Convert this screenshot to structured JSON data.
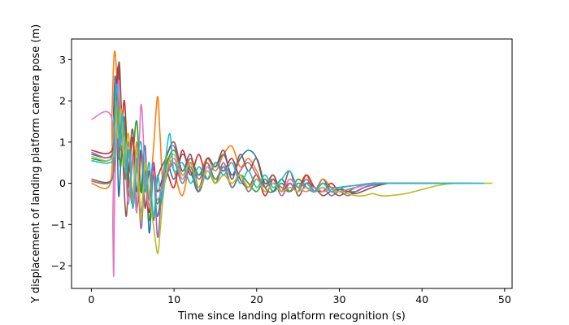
{
  "chart_data": {
    "type": "line",
    "title": "",
    "xlabel": "Time since landing platform recognition (s)",
    "ylabel": "Y displacement of landing platform camera pose (m)",
    "xlim": [
      -2.4,
      50.9
    ],
    "ylim": [
      -2.55,
      3.5
    ],
    "xticks": [
      0,
      10,
      20,
      30,
      40,
      50
    ],
    "yticks": [
      -2,
      -1,
      0,
      1,
      2,
      3
    ],
    "grid": false,
    "legend": "none",
    "series": [
      {
        "color": "#1f77b4",
        "x": [
          0,
          2.6,
          2.7,
          2.9,
          3.1,
          3.3,
          3.6,
          4.0,
          4.5,
          5.0,
          5.5,
          6.0,
          6.5,
          7.0,
          7.5,
          8.0,
          9.0,
          10.0,
          11.0,
          12.0,
          13.0,
          14.0,
          15.0,
          16.0,
          17.0,
          18.0,
          19.0,
          20.0,
          21.0,
          22.0,
          23.0,
          24.0,
          25.0,
          26.0,
          27.0,
          28.0,
          29.0,
          30.0,
          31.0,
          32.0,
          33.0,
          34.0,
          36.0,
          38.0,
          40.0,
          42.0,
          44.0,
          46.0
        ],
        "y": [
          0.7,
          0.7,
          1.8,
          2.6,
          1.5,
          -0.3,
          0.6,
          1.4,
          0.2,
          -0.5,
          0.6,
          -0.2,
          0.9,
          -1.2,
          0.3,
          -0.8,
          0.5,
          0.1,
          0.7,
          0.3,
          -0.2,
          0.6,
          0.4,
          0.7,
          0.2,
          0.6,
          0.8,
          0.6,
          -0.1,
          -0.2,
          0.1,
          -0.2,
          0.0,
          -0.1,
          -0.2,
          0.1,
          -0.2,
          -0.15,
          -0.2,
          -0.2,
          -0.1,
          -0.05,
          0.0,
          0.0,
          0.0,
          0.0,
          0.0,
          0.0
        ]
      },
      {
        "color": "#ff7f0e",
        "x": [
          0,
          2.3,
          2.5,
          2.8,
          3.2,
          3.6,
          4.0,
          4.5,
          5.0,
          5.5,
          6.0,
          6.5,
          7.0,
          7.5,
          8.0,
          8.3,
          8.7,
          9.2,
          10.0,
          11.0,
          12.0,
          13.0,
          14.0,
          15.0,
          16.0,
          17.0,
          18.0,
          19.0,
          20.0,
          21.0,
          22.0,
          23.0,
          24.0,
          25.0,
          26.0,
          27.0,
          28.0,
          29.0,
          30.0,
          32.0,
          34.0,
          36.0,
          38.0,
          40.0,
          42.0
        ],
        "y": [
          0.0,
          0.0,
          1.7,
          3.2,
          2.2,
          0.8,
          1.6,
          0.2,
          -0.4,
          1.0,
          -0.9,
          0.5,
          -0.3,
          0.8,
          2.1,
          1.2,
          -0.1,
          0.6,
          0.3,
          -0.3,
          0.5,
          0.2,
          0.6,
          0.3,
          0.7,
          0.9,
          0.4,
          0.6,
          0.3,
          -0.1,
          0.2,
          -0.2,
          0.1,
          -0.1,
          0.2,
          -0.2,
          0.1,
          -0.1,
          -0.2,
          -0.1,
          0.0,
          0.0,
          0.0,
          0.0,
          0.0
        ]
      },
      {
        "color": "#2ca02c",
        "x": [
          0,
          2.4,
          2.7,
          3.1,
          3.5,
          4.0,
          4.5,
          5.0,
          5.5,
          6.0,
          6.5,
          7.0,
          7.5,
          8.0,
          9.0,
          10.0,
          11.0,
          12.0,
          13.0,
          14.0,
          15.0,
          16.0,
          17.0,
          18.0,
          19.0,
          20.0,
          21.0,
          22.0,
          23.0,
          24.0,
          25.0,
          26.0,
          27.0,
          28.0,
          29.0,
          30.0,
          31.0,
          32.0,
          34.0,
          36.0,
          38.0,
          40.0
        ],
        "y": [
          0.6,
          0.6,
          1.4,
          2.3,
          0.4,
          1.6,
          -0.3,
          0.6,
          1.5,
          -0.2,
          0.3,
          -0.9,
          0.4,
          -0.5,
          0.4,
          0.8,
          0.3,
          0.6,
          0.2,
          0.5,
          0.1,
          0.4,
          -0.1,
          0.2,
          0.0,
          -0.2,
          0.1,
          -0.2,
          0.0,
          -0.2,
          0.1,
          -0.1,
          -0.2,
          0.0,
          -0.2,
          -0.1,
          -0.2,
          -0.1,
          0.0,
          0.0,
          0.0,
          0.0
        ]
      },
      {
        "color": "#d62728",
        "x": [
          0,
          2.5,
          2.8,
          3.0,
          3.3,
          3.6,
          4.0,
          4.5,
          5.0,
          5.5,
          6.0,
          6.5,
          7.0,
          7.5,
          8.0,
          9.0,
          10.0,
          11.0,
          12.0,
          13.0,
          14.0,
          15.0,
          16.0,
          17.0,
          18.0,
          19.0,
          20.0,
          21.0,
          22.0,
          23.0,
          24.0,
          25.0,
          26.0,
          27.0,
          28.0,
          29.0,
          30.0,
          31.0,
          32.0,
          34.0,
          36.0,
          38.0,
          40.0
        ],
        "y": [
          0.8,
          0.8,
          1.9,
          2.3,
          2.8,
          1.1,
          2.0,
          0.3,
          1.1,
          -0.6,
          0.7,
          0.1,
          -0.7,
          0.5,
          -0.2,
          0.3,
          -0.1,
          0.8,
          0.2,
          0.7,
          0.1,
          0.5,
          0.3,
          0.6,
          0.1,
          -0.1,
          0.2,
          -0.3,
          0.1,
          -0.2,
          0.0,
          -0.2,
          0.2,
          -0.1,
          -0.2,
          0.0,
          -0.2,
          -0.15,
          -0.1,
          0.0,
          0.0,
          0.0,
          0.0
        ]
      },
      {
        "color": "#9467bd",
        "x": [
          0,
          2.6,
          2.9,
          3.2,
          3.6,
          4.0,
          4.5,
          5.0,
          5.5,
          6.0,
          6.5,
          7.0,
          7.5,
          8.0,
          8.5,
          9.0,
          10.0,
          11.0,
          12.0,
          13.0,
          14.0,
          15.0,
          16.0,
          17.0,
          18.0,
          19.0,
          20.0,
          21.0,
          22.0,
          23.0,
          24.0,
          25.0,
          26.0,
          27.0,
          28.0,
          29.0,
          30.0,
          31.0,
          32.0,
          33.0,
          35.0,
          37.0,
          40.0
        ],
        "y": [
          0.75,
          0.75,
          2.5,
          0.8,
          1.9,
          0.2,
          1.0,
          -0.4,
          0.6,
          -1.1,
          0.2,
          -0.6,
          0.5,
          -1.3,
          -0.2,
          0.6,
          0.9,
          0.2,
          0.6,
          0.1,
          0.5,
          0.0,
          0.5,
          -0.1,
          0.3,
          0.5,
          0.2,
          -0.1,
          0.1,
          -0.3,
          0.0,
          -0.2,
          0.1,
          -0.2,
          -0.1,
          -0.3,
          -0.2,
          -0.3,
          -0.2,
          -0.1,
          0.0,
          0.0,
          0.0
        ]
      },
      {
        "color": "#8c564b",
        "x": [
          0,
          2.5,
          2.8,
          3.1,
          3.4,
          3.8,
          4.2,
          4.6,
          5.0,
          5.5,
          6.0,
          6.5,
          7.0,
          7.5,
          8.0,
          9.0,
          10.0,
          11.0,
          12.0,
          13.0,
          14.0,
          15.0,
          16.0,
          17.0,
          18.0,
          19.0,
          20.0,
          21.0,
          22.0,
          23.0,
          24.0,
          25.0,
          26.0,
          27.0,
          28.0,
          29.0,
          30.0,
          31.0,
          32.0,
          34.0,
          36.0,
          38.0,
          40.0,
          42.0
        ],
        "y": [
          0.1,
          0.1,
          1.2,
          2.1,
          2.9,
          0.7,
          -0.8,
          0.5,
          1.3,
          -0.2,
          0.8,
          -0.6,
          0.3,
          -0.9,
          0.1,
          0.6,
          1.0,
          0.3,
          0.7,
          -0.1,
          0.6,
          0.4,
          0.8,
          0.1,
          0.7,
          0.3,
          0.6,
          0.0,
          0.2,
          -0.2,
          0.3,
          -0.3,
          0.0,
          -0.1,
          -0.3,
          -0.2,
          -0.3,
          -0.2,
          -0.25,
          -0.1,
          0.0,
          0.0,
          0.0,
          0.0
        ]
      },
      {
        "color": "#e377c2",
        "x": [
          0,
          2.5,
          2.6,
          2.7,
          2.8,
          3.0,
          3.3,
          3.7,
          4.1,
          4.5,
          5.0,
          5.5,
          6.0,
          6.5,
          7.0,
          7.5,
          8.0,
          9.0,
          10.0,
          11.0,
          12.0,
          13.0,
          14.0,
          15.0,
          16.0,
          17.0,
          18.0,
          19.0,
          20.0,
          21.0,
          22.0,
          23.0,
          24.0,
          25.0,
          26.0,
          27.0,
          28.0,
          29.0,
          30.0,
          31.0,
          32.0,
          33.0,
          35.0,
          37.0,
          40.0
        ],
        "y": [
          1.55,
          1.55,
          -1.0,
          -2.25,
          -0.5,
          0.9,
          2.5,
          1.0,
          0.4,
          -0.5,
          0.7,
          -0.7,
          1.9,
          0.2,
          -0.6,
          0.3,
          -0.4,
          0.2,
          0.6,
          0.1,
          0.5,
          -0.2,
          0.4,
          0.0,
          0.4,
          -0.1,
          0.2,
          -0.2,
          0.1,
          -0.2,
          0.0,
          -0.2,
          0.1,
          -0.1,
          -0.2,
          -0.1,
          -0.2,
          -0.15,
          -0.2,
          -0.15,
          -0.1,
          -0.05,
          0.0,
          0.0,
          0.0
        ]
      },
      {
        "color": "#7f7f7f",
        "x": [
          0,
          2.4,
          2.7,
          3.0,
          3.3,
          3.7,
          4.1,
          4.5,
          5.0,
          5.5,
          6.0,
          6.5,
          7.0,
          7.5,
          8.0,
          9.0,
          10.0,
          11.0,
          12.0,
          13.0,
          14.0,
          15.0,
          16.0,
          17.0,
          18.0,
          19.0,
          20.0,
          21.0,
          22.0,
          23.0,
          24.0,
          25.0,
          26.0,
          27.0,
          28.0,
          29.0,
          30.0,
          32.0,
          34.0,
          36.0,
          38.0,
          40.0
        ],
        "y": [
          0.05,
          0.05,
          0.9,
          2.0,
          0.6,
          1.2,
          0.1,
          0.8,
          -0.3,
          0.5,
          -0.7,
          0.3,
          -0.4,
          0.2,
          -0.8,
          0.1,
          0.5,
          0.0,
          0.4,
          -0.2,
          0.3,
          0.0,
          0.4,
          -0.1,
          0.2,
          -0.2,
          0.1,
          -0.2,
          0.0,
          -0.1,
          -0.2,
          0.0,
          -0.1,
          -0.2,
          0.0,
          -0.1,
          -0.1,
          -0.05,
          0.0,
          0.0,
          0.0,
          0.0
        ]
      },
      {
        "color": "#bcbd22",
        "x": [
          0,
          2.6,
          2.9,
          3.2,
          3.6,
          4.0,
          4.5,
          5.0,
          5.5,
          6.0,
          6.5,
          7.0,
          7.5,
          8.0,
          8.3,
          8.7,
          9.2,
          10.0,
          11.0,
          12.0,
          13.0,
          14.0,
          15.0,
          16.0,
          17.0,
          18.0,
          19.0,
          20.0,
          21.0,
          22.0,
          23.0,
          24.0,
          25.0,
          26.0,
          27.0,
          28.0,
          29.0,
          30.0,
          31.0,
          32.0,
          33.0,
          34.0,
          35.0,
          36.0,
          38.0,
          40.0,
          42.0,
          44.0,
          46.0,
          48.5
        ],
        "y": [
          0.65,
          0.65,
          2.0,
          1.1,
          1.8,
          0.4,
          1.2,
          -0.5,
          0.8,
          -0.9,
          0.5,
          -0.3,
          -1.0,
          -1.7,
          -1.2,
          -0.3,
          0.4,
          0.7,
          0.2,
          0.5,
          -0.1,
          0.3,
          0.0,
          0.2,
          0.0,
          0.2,
          -0.1,
          0.1,
          -0.2,
          0.0,
          -0.2,
          -0.1,
          -0.2,
          -0.1,
          -0.2,
          -0.1,
          -0.2,
          -0.2,
          -0.25,
          -0.3,
          -0.3,
          -0.25,
          -0.3,
          -0.3,
          -0.25,
          -0.15,
          -0.05,
          0.0,
          0.0,
          0.0
        ]
      },
      {
        "color": "#17becf",
        "x": [
          0,
          2.6,
          2.8,
          3.1,
          3.4,
          3.8,
          4.2,
          4.6,
          5.0,
          5.5,
          6.0,
          6.5,
          7.0,
          7.5,
          8.0,
          8.5,
          9.0,
          9.5,
          10.0,
          11.0,
          12.0,
          13.0,
          14.0,
          15.0,
          16.0,
          17.0,
          18.0,
          19.0,
          20.0,
          21.0,
          22.0,
          23.0,
          24.0,
          25.0,
          26.0,
          27.0,
          28.0,
          29.0,
          30.0,
          32.0,
          34.0,
          36.0,
          38.0,
          40.0,
          42.0,
          44.0,
          46.0,
          47.5
        ],
        "y": [
          0.55,
          0.55,
          1.4,
          2.4,
          0.9,
          1.7,
          0.3,
          0.8,
          -0.6,
          0.4,
          1.0,
          -0.2,
          0.5,
          -0.8,
          0.2,
          -0.4,
          0.6,
          1.2,
          0.3,
          0.5,
          0.0,
          0.4,
          0.1,
          0.5,
          0.2,
          0.5,
          0.0,
          0.3,
          -0.1,
          0.2,
          -0.1,
          0.1,
          0.3,
          -0.1,
          0.0,
          -0.2,
          0.0,
          -0.2,
          -0.1,
          -0.05,
          0.0,
          0.0,
          0.0,
          0.0,
          0.0,
          0.0,
          0.0,
          0.0
        ]
      }
    ]
  }
}
